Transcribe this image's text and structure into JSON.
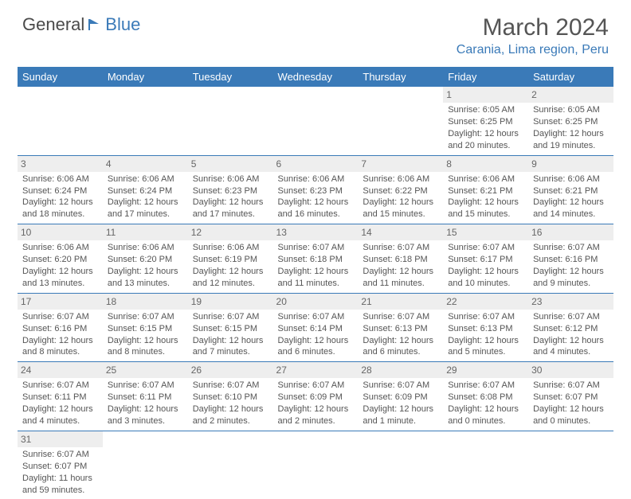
{
  "brand": {
    "name1": "General",
    "name2": "Blue"
  },
  "title": "March 2024",
  "location": "Carania, Lima region, Peru",
  "colors": {
    "header_bg": "#3a7ab8",
    "header_text": "#ffffff",
    "daynum_bg": "#eeeeee",
    "text": "#555555",
    "rule": "#3a7ab8"
  },
  "weekdays": [
    "Sunday",
    "Monday",
    "Tuesday",
    "Wednesday",
    "Thursday",
    "Friday",
    "Saturday"
  ],
  "weeks": [
    [
      null,
      null,
      null,
      null,
      null,
      {
        "n": "1",
        "sr": "Sunrise: 6:05 AM",
        "ss": "Sunset: 6:25 PM",
        "dl": "Daylight: 12 hours and 20 minutes."
      },
      {
        "n": "2",
        "sr": "Sunrise: 6:05 AM",
        "ss": "Sunset: 6:25 PM",
        "dl": "Daylight: 12 hours and 19 minutes."
      }
    ],
    [
      {
        "n": "3",
        "sr": "Sunrise: 6:06 AM",
        "ss": "Sunset: 6:24 PM",
        "dl": "Daylight: 12 hours and 18 minutes."
      },
      {
        "n": "4",
        "sr": "Sunrise: 6:06 AM",
        "ss": "Sunset: 6:24 PM",
        "dl": "Daylight: 12 hours and 17 minutes."
      },
      {
        "n": "5",
        "sr": "Sunrise: 6:06 AM",
        "ss": "Sunset: 6:23 PM",
        "dl": "Daylight: 12 hours and 17 minutes."
      },
      {
        "n": "6",
        "sr": "Sunrise: 6:06 AM",
        "ss": "Sunset: 6:23 PM",
        "dl": "Daylight: 12 hours and 16 minutes."
      },
      {
        "n": "7",
        "sr": "Sunrise: 6:06 AM",
        "ss": "Sunset: 6:22 PM",
        "dl": "Daylight: 12 hours and 15 minutes."
      },
      {
        "n": "8",
        "sr": "Sunrise: 6:06 AM",
        "ss": "Sunset: 6:21 PM",
        "dl": "Daylight: 12 hours and 15 minutes."
      },
      {
        "n": "9",
        "sr": "Sunrise: 6:06 AM",
        "ss": "Sunset: 6:21 PM",
        "dl": "Daylight: 12 hours and 14 minutes."
      }
    ],
    [
      {
        "n": "10",
        "sr": "Sunrise: 6:06 AM",
        "ss": "Sunset: 6:20 PM",
        "dl": "Daylight: 12 hours and 13 minutes."
      },
      {
        "n": "11",
        "sr": "Sunrise: 6:06 AM",
        "ss": "Sunset: 6:20 PM",
        "dl": "Daylight: 12 hours and 13 minutes."
      },
      {
        "n": "12",
        "sr": "Sunrise: 6:06 AM",
        "ss": "Sunset: 6:19 PM",
        "dl": "Daylight: 12 hours and 12 minutes."
      },
      {
        "n": "13",
        "sr": "Sunrise: 6:07 AM",
        "ss": "Sunset: 6:18 PM",
        "dl": "Daylight: 12 hours and 11 minutes."
      },
      {
        "n": "14",
        "sr": "Sunrise: 6:07 AM",
        "ss": "Sunset: 6:18 PM",
        "dl": "Daylight: 12 hours and 11 minutes."
      },
      {
        "n": "15",
        "sr": "Sunrise: 6:07 AM",
        "ss": "Sunset: 6:17 PM",
        "dl": "Daylight: 12 hours and 10 minutes."
      },
      {
        "n": "16",
        "sr": "Sunrise: 6:07 AM",
        "ss": "Sunset: 6:16 PM",
        "dl": "Daylight: 12 hours and 9 minutes."
      }
    ],
    [
      {
        "n": "17",
        "sr": "Sunrise: 6:07 AM",
        "ss": "Sunset: 6:16 PM",
        "dl": "Daylight: 12 hours and 8 minutes."
      },
      {
        "n": "18",
        "sr": "Sunrise: 6:07 AM",
        "ss": "Sunset: 6:15 PM",
        "dl": "Daylight: 12 hours and 8 minutes."
      },
      {
        "n": "19",
        "sr": "Sunrise: 6:07 AM",
        "ss": "Sunset: 6:15 PM",
        "dl": "Daylight: 12 hours and 7 minutes."
      },
      {
        "n": "20",
        "sr": "Sunrise: 6:07 AM",
        "ss": "Sunset: 6:14 PM",
        "dl": "Daylight: 12 hours and 6 minutes."
      },
      {
        "n": "21",
        "sr": "Sunrise: 6:07 AM",
        "ss": "Sunset: 6:13 PM",
        "dl": "Daylight: 12 hours and 6 minutes."
      },
      {
        "n": "22",
        "sr": "Sunrise: 6:07 AM",
        "ss": "Sunset: 6:13 PM",
        "dl": "Daylight: 12 hours and 5 minutes."
      },
      {
        "n": "23",
        "sr": "Sunrise: 6:07 AM",
        "ss": "Sunset: 6:12 PM",
        "dl": "Daylight: 12 hours and 4 minutes."
      }
    ],
    [
      {
        "n": "24",
        "sr": "Sunrise: 6:07 AM",
        "ss": "Sunset: 6:11 PM",
        "dl": "Daylight: 12 hours and 4 minutes."
      },
      {
        "n": "25",
        "sr": "Sunrise: 6:07 AM",
        "ss": "Sunset: 6:11 PM",
        "dl": "Daylight: 12 hours and 3 minutes."
      },
      {
        "n": "26",
        "sr": "Sunrise: 6:07 AM",
        "ss": "Sunset: 6:10 PM",
        "dl": "Daylight: 12 hours and 2 minutes."
      },
      {
        "n": "27",
        "sr": "Sunrise: 6:07 AM",
        "ss": "Sunset: 6:09 PM",
        "dl": "Daylight: 12 hours and 2 minutes."
      },
      {
        "n": "28",
        "sr": "Sunrise: 6:07 AM",
        "ss": "Sunset: 6:09 PM",
        "dl": "Daylight: 12 hours and 1 minute."
      },
      {
        "n": "29",
        "sr": "Sunrise: 6:07 AM",
        "ss": "Sunset: 6:08 PM",
        "dl": "Daylight: 12 hours and 0 minutes."
      },
      {
        "n": "30",
        "sr": "Sunrise: 6:07 AM",
        "ss": "Sunset: 6:07 PM",
        "dl": "Daylight: 12 hours and 0 minutes."
      }
    ],
    [
      {
        "n": "31",
        "sr": "Sunrise: 6:07 AM",
        "ss": "Sunset: 6:07 PM",
        "dl": "Daylight: 11 hours and 59 minutes."
      },
      null,
      null,
      null,
      null,
      null,
      null
    ]
  ]
}
